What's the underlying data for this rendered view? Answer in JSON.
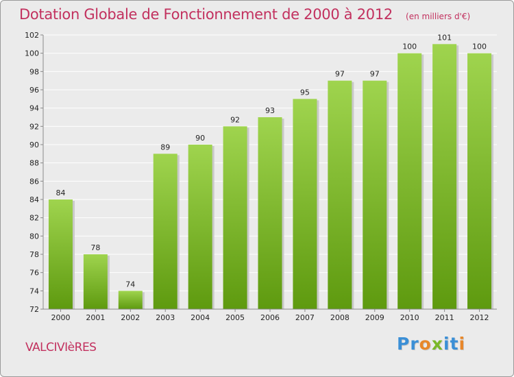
{
  "title": "Dotation Globale de Fonctionnement de 2000 à 2012",
  "subtitle": "(en milliers d'€)",
  "town": "VALCIVIèRES",
  "logo": {
    "letters": [
      {
        "char": "P",
        "color": "#3b8fd6"
      },
      {
        "char": "r",
        "color": "#3b8fd6"
      },
      {
        "char": "o",
        "color": "#e8872a"
      },
      {
        "char": "x",
        "color": "#7ab828"
      },
      {
        "char": "i",
        "color": "#3b8fd6"
      },
      {
        "char": "t",
        "color": "#3b8fd6"
      },
      {
        "char": "i",
        "color": "#e8872a"
      }
    ]
  },
  "colors": {
    "bar_top": "#9fd44e",
    "bar_bottom": "#5e9a0f",
    "title": "#c2305e",
    "grid": "#ffffff",
    "plot_bg": "#ebebeb"
  },
  "chart_data": {
    "type": "bar",
    "categories": [
      "2000",
      "2001",
      "2002",
      "2003",
      "2004",
      "2005",
      "2006",
      "2007",
      "2008",
      "2009",
      "2010",
      "2011",
      "2012"
    ],
    "values": [
      84,
      78,
      74,
      89,
      90,
      92,
      93,
      95,
      97,
      97,
      100,
      101,
      100
    ],
    "ylim": [
      72,
      102
    ],
    "yticks": [
      72,
      74,
      76,
      78,
      80,
      82,
      84,
      86,
      88,
      90,
      92,
      94,
      96,
      98,
      100,
      102
    ],
    "grid": true,
    "data_labels": true
  }
}
